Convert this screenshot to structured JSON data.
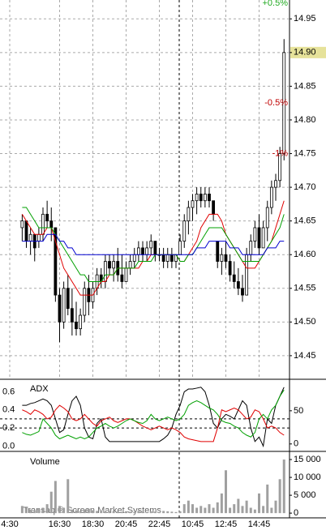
{
  "chart_data": [
    {
      "type": "candlestick",
      "categories": [
        "4:30",
        null,
        null,
        null,
        null,
        null,
        null,
        null,
        null,
        null,
        null,
        null,
        "16:30",
        null,
        null,
        null,
        null,
        null,
        null,
        null,
        "18:30",
        null,
        null,
        null,
        null,
        null,
        null,
        null,
        "20:45",
        null,
        null,
        null,
        null,
        null,
        null,
        null,
        "22:45",
        null,
        null,
        null,
        null,
        null,
        null,
        null,
        "10:45",
        null,
        null,
        null,
        null,
        null,
        null,
        null,
        "12:45",
        null,
        null,
        null,
        null,
        null,
        null,
        null,
        "14:45",
        null,
        null,
        null,
        null,
        null,
        null
      ],
      "open": [
        null,
        null,
        null,
        14.64,
        14.65,
        14.62,
        14.63,
        14.62,
        14.63,
        14.66,
        14.65,
        14.64,
        14.54,
        14.5,
        14.55,
        14.52,
        14.5,
        14.49,
        14.51,
        14.55,
        14.53,
        14.55,
        14.57,
        14.56,
        14.59,
        14.58,
        14.59,
        14.57,
        14.56,
        14.58,
        14.59,
        14.6,
        14.61,
        14.6,
        14.61,
        14.62,
        14.6,
        14.6,
        14.59,
        14.6,
        14.59,
        14.6,
        14.62,
        14.65,
        14.67,
        14.68,
        14.69,
        14.68,
        14.69,
        14.68,
        14.62,
        14.59,
        14.6,
        14.59,
        14.57,
        14.56,
        14.55,
        14.54,
        14.6,
        14.62,
        14.64,
        14.61,
        14.64,
        14.67,
        14.7,
        14.71,
        14.75
      ],
      "high": [
        null,
        null,
        null,
        14.66,
        14.65,
        14.64,
        14.63,
        14.64,
        14.67,
        14.68,
        14.67,
        14.64,
        14.55,
        14.56,
        14.57,
        14.55,
        14.53,
        14.52,
        14.56,
        14.57,
        14.56,
        14.58,
        14.58,
        14.6,
        14.6,
        14.6,
        14.61,
        14.6,
        14.59,
        14.6,
        14.61,
        14.62,
        14.62,
        14.62,
        14.63,
        14.62,
        14.61,
        14.61,
        14.61,
        14.61,
        14.6,
        14.63,
        14.66,
        14.68,
        14.69,
        14.7,
        14.7,
        14.7,
        14.7,
        14.68,
        14.62,
        14.61,
        14.62,
        14.6,
        14.59,
        14.58,
        14.57,
        14.61,
        14.63,
        14.65,
        14.66,
        14.65,
        14.68,
        14.71,
        14.72,
        14.76,
        14.92
      ],
      "low": [
        null,
        null,
        null,
        14.62,
        14.61,
        14.6,
        14.59,
        14.61,
        14.62,
        14.64,
        14.62,
        14.53,
        14.47,
        14.49,
        14.51,
        14.48,
        14.48,
        14.48,
        14.5,
        14.51,
        14.52,
        14.54,
        14.55,
        14.55,
        14.57,
        14.56,
        14.56,
        14.55,
        14.56,
        14.57,
        14.58,
        14.59,
        14.59,
        14.59,
        14.6,
        14.59,
        14.59,
        14.58,
        14.58,
        14.58,
        14.58,
        14.6,
        14.61,
        14.63,
        14.65,
        14.66,
        14.67,
        14.67,
        14.67,
        14.65,
        14.58,
        14.57,
        14.58,
        14.56,
        14.55,
        14.54,
        14.53,
        14.54,
        14.59,
        14.61,
        14.6,
        14.61,
        14.62,
        14.66,
        14.68,
        14.7,
        14.74
      ],
      "close": [
        null,
        null,
        null,
        14.65,
        14.62,
        14.63,
        14.61,
        14.63,
        14.66,
        14.65,
        14.64,
        14.54,
        14.5,
        14.55,
        14.52,
        14.5,
        14.49,
        14.51,
        14.55,
        14.53,
        14.55,
        14.57,
        14.56,
        14.59,
        14.58,
        14.59,
        14.57,
        14.56,
        14.58,
        14.59,
        14.6,
        14.61,
        14.6,
        14.61,
        14.62,
        14.6,
        14.6,
        14.59,
        14.6,
        14.59,
        14.6,
        14.62,
        14.65,
        14.67,
        14.68,
        14.69,
        14.68,
        14.69,
        14.68,
        14.66,
        14.59,
        14.6,
        14.59,
        14.57,
        14.56,
        14.55,
        14.54,
        14.6,
        14.62,
        14.64,
        14.61,
        14.64,
        14.67,
        14.7,
        14.71,
        14.75,
        14.9
      ],
      "series": [
        {
          "color": "#e00000",
          "values": [
            null,
            null,
            null,
            14.66,
            14.65,
            14.64,
            14.63,
            14.63,
            14.63,
            14.64,
            14.64,
            14.62,
            14.6,
            14.58,
            14.57,
            14.56,
            14.55,
            14.54,
            14.54,
            14.54,
            14.54,
            14.55,
            14.56,
            14.56,
            14.57,
            14.57,
            14.58,
            14.58,
            14.58,
            14.58,
            14.58,
            14.58,
            14.59,
            14.59,
            14.6,
            14.6,
            14.6,
            14.6,
            14.6,
            14.6,
            14.6,
            14.59,
            14.59,
            14.6,
            14.61,
            14.62,
            14.64,
            14.65,
            14.66,
            14.66,
            14.66,
            14.65,
            14.63,
            14.62,
            14.61,
            14.6,
            14.59,
            14.58,
            14.58,
            14.58,
            14.59,
            14.6,
            14.61,
            14.62,
            14.64,
            14.66,
            14.68
          ]
        },
        {
          "color": "#00a000",
          "values": [
            null,
            null,
            null,
            14.67,
            14.67,
            14.66,
            14.65,
            14.64,
            14.64,
            14.64,
            14.64,
            14.63,
            14.62,
            14.61,
            14.6,
            14.59,
            14.58,
            14.57,
            14.57,
            14.56,
            14.56,
            14.56,
            14.56,
            14.57,
            14.57,
            14.57,
            14.58,
            14.58,
            14.58,
            14.58,
            14.58,
            14.59,
            14.59,
            14.59,
            14.59,
            14.6,
            14.6,
            14.6,
            14.6,
            14.6,
            14.6,
            14.59,
            14.59,
            14.6,
            14.6,
            14.61,
            14.62,
            14.63,
            14.64,
            14.64,
            14.64,
            14.64,
            14.63,
            14.62,
            14.61,
            14.6,
            14.59,
            14.59,
            14.59,
            14.59,
            14.59,
            14.6,
            14.61,
            14.62,
            14.63,
            14.64,
            14.66
          ]
        },
        {
          "color": "#0000d0",
          "values": [
            null,
            null,
            null,
            14.62,
            14.62,
            14.62,
            14.62,
            14.62,
            14.62,
            14.63,
            14.63,
            14.63,
            14.62,
            14.62,
            14.61,
            14.61,
            14.6,
            14.6,
            14.6,
            14.6,
            14.6,
            14.6,
            14.6,
            14.6,
            14.6,
            14.6,
            14.6,
            14.6,
            14.6,
            14.6,
            14.6,
            14.6,
            14.6,
            14.6,
            14.6,
            14.6,
            14.6,
            14.6,
            14.6,
            14.6,
            14.6,
            14.6,
            14.6,
            14.6,
            14.6,
            14.61,
            14.61,
            14.61,
            14.62,
            14.62,
            14.62,
            14.62,
            14.62,
            14.61,
            14.61,
            14.61,
            14.6,
            14.6,
            14.6,
            14.6,
            14.6,
            14.6,
            14.61,
            14.61,
            14.61,
            14.62,
            14.62
          ]
        }
      ],
      "ylim": [
        14.415,
        14.978
      ],
      "yticks": [
        14.45,
        {
          "value": 14.5,
          "label": "14.50"
        },
        14.55,
        {
          "value": 14.6,
          "label": "14.60"
        },
        14.65,
        {
          "value": 14.7,
          "label": "14.70"
        },
        14.75,
        {
          "value": 14.8,
          "label": "14.80"
        },
        14.85,
        {
          "value": 14.9,
          "label": "14.90"
        },
        14.95
      ],
      "yaxis": "right",
      "grid": true,
      "annotations": [
        {
          "label": "+0.5%",
          "y": 14.973,
          "color": "#22aa22"
        },
        {
          "label": "-0.5%",
          "y": 14.825,
          "color": "#c00000"
        },
        {
          "label": "-1%",
          "y": 14.75,
          "color": "#c00000"
        }
      ]
    },
    {
      "type": "line",
      "title": "ADX",
      "series": [
        {
          "color": "#000000",
          "values": [
            null,
            null,
            null,
            0.45,
            0.45,
            0.47,
            0.48,
            0.5,
            0.52,
            0.5,
            0.45,
            0.3,
            0.15,
            0.18,
            0.35,
            0.5,
            0.55,
            0.45,
            0.2,
            0.1,
            0.08,
            0.25,
            0.3,
            0.1,
            0.05,
            0.05,
            0.05,
            0.05,
            0.05,
            0.05,
            0.05,
            0.05,
            0.05,
            0.05,
            0.05,
            0.05,
            0.05,
            0.08,
            0.12,
            0.2,
            0.35,
            0.45,
            0.6,
            0.63,
            0.63,
            0.64,
            0.65,
            0.6,
            0.45,
            0.25,
            0.2,
            0.3,
            0.35,
            0.33,
            0.3,
            0.4,
            0.5,
            0.45,
            0.2,
            0.05,
            0.1,
            0.0,
            0.3,
            0.25,
            0.45,
            0.55,
            0.65
          ]
        },
        {
          "color": "#e00000",
          "values": [
            null,
            null,
            null,
            0.4,
            0.38,
            0.35,
            0.4,
            0.38,
            0.35,
            0.3,
            0.32,
            0.4,
            0.45,
            0.42,
            0.38,
            0.3,
            0.28,
            0.3,
            0.35,
            0.3,
            0.25,
            0.22,
            0.28,
            0.3,
            0.32,
            0.28,
            0.26,
            0.28,
            0.3,
            0.3,
            0.28,
            0.25,
            0.22,
            0.2,
            0.18,
            0.2,
            0.22,
            0.2,
            0.18,
            0.2,
            0.18,
            0.15,
            0.1,
            0.08,
            0.07,
            0.06,
            0.05,
            0.05,
            0.05,
            0.05,
            0.2,
            0.4,
            0.38,
            0.4,
            0.42,
            0.4,
            0.35,
            0.3,
            0.32,
            0.4,
            0.38,
            0.3,
            0.2,
            0.22,
            0.2,
            0.15,
            0.12
          ]
        },
        {
          "color": "#00a000",
          "values": [
            null,
            null,
            null,
            0.15,
            0.13,
            0.12,
            0.14,
            0.16,
            0.3,
            0.25,
            0.2,
            0.12,
            0.08,
            0.1,
            0.12,
            0.1,
            0.08,
            0.1,
            0.08,
            0.1,
            0.15,
            0.2,
            0.22,
            0.25,
            0.22,
            0.2,
            0.22,
            0.25,
            0.28,
            0.3,
            0.28,
            0.26,
            0.25,
            0.28,
            0.35,
            0.3,
            0.28,
            0.3,
            0.32,
            0.3,
            0.28,
            0.3,
            0.35,
            0.45,
            0.48,
            0.5,
            0.48,
            0.45,
            0.42,
            0.4,
            0.35,
            0.28,
            0.26,
            0.25,
            0.22,
            0.2,
            0.15,
            0.12,
            0.1,
            0.15,
            0.3,
            0.35,
            0.3,
            0.4,
            0.45,
            0.55,
            0.62
          ]
        }
      ],
      "ylim": [
        -0.05,
        0.72
      ],
      "yticks": [
        {
          "value": 0,
          "label": "0.0"
        },
        0.2,
        0.4,
        0.6
      ],
      "yaxis": "left",
      "y2lim": [
        -10,
        95
      ],
      "y2ticks": [
        0,
        50
      ],
      "hlines": [
        0.2,
        0.3
      ]
    },
    {
      "type": "bar",
      "title": "Volume",
      "color": "#a0a0a0",
      "values": [
        null,
        null,
        null,
        2000,
        1500,
        1000,
        800,
        1200,
        1500,
        2500,
        6000,
        9000,
        2000,
        1500,
        9500,
        1000,
        800,
        600,
        1000,
        1200,
        800,
        600,
        500,
        400,
        600,
        500,
        400,
        300,
        500,
        400,
        300,
        600,
        400,
        300,
        500,
        400,
        300,
        600,
        500,
        400,
        300,
        500,
        2500,
        3500,
        2500,
        1500,
        2000,
        1500,
        2500,
        1500,
        3000,
        5500,
        12000,
        1500,
        2500,
        4000,
        2000,
        3500,
        1500,
        1000,
        5500,
        2000,
        8000,
        1500,
        3500,
        9500,
        15000
      ],
      "ylim": [
        -1100,
        16600
      ],
      "yticks": [
        0,
        {
          "value": 5000,
          "label": "5 000"
        },
        {
          "value": 10000,
          "label": "10 000"
        },
        {
          "value": 15000,
          "label": "15 000"
        }
      ],
      "yaxis": "right"
    }
  ],
  "watermark": "Transaq ® Screen Market Systems"
}
